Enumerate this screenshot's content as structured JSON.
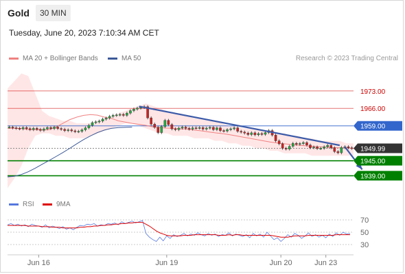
{
  "header": {
    "instrument": "Gold",
    "interval": "30 MIN",
    "datetime": "Tuesday, June 20, 2023 7:10:34 AM CET"
  },
  "legend": {
    "ma20": "MA 20 + Bollinger Bands",
    "ma50": "MA 50",
    "rsi": "RSI",
    "rsi_ma": "9MA",
    "credit": "Research © 2023 Trading Central"
  },
  "colors": {
    "resistance": "#d00000",
    "pivot": "#3366cc",
    "support": "#008000",
    "current": "#333333",
    "ma20": "#f08080",
    "ma50": "#3b5998",
    "rsi": "#5577dd",
    "rsi_ma": "#dd0000"
  },
  "chart_data": {
    "type": "line",
    "ylim": [
      1932,
      1982
    ],
    "xlim": [
      0,
      100
    ],
    "x_ticks": [
      {
        "pos": 9,
        "label": "Jun 16"
      },
      {
        "pos": 46,
        "label": "Jun 19"
      },
      {
        "pos": 79,
        "label": "Jun 20"
      },
      {
        "pos": 92,
        "label": "Jun 23"
      }
    ],
    "levels": [
      {
        "value": 1973.0,
        "label": "1973.00",
        "kind": "resistance"
      },
      {
        "value": 1966.0,
        "label": "1966.00",
        "kind": "resistance"
      },
      {
        "value": 1959.0,
        "label": "1959.00",
        "kind": "pivot"
      },
      {
        "value": 1949.99,
        "label": "1949.99",
        "kind": "current"
      },
      {
        "value": 1945.0,
        "label": "1945.00",
        "kind": "support"
      },
      {
        "value": 1939.0,
        "label": "1939.00",
        "kind": "support"
      }
    ],
    "price": [
      1958.5,
      1958.2,
      1958.0,
      1957.8,
      1958.3,
      1957.9,
      1957.5,
      1958.0,
      1957.6,
      1957.2,
      1957.8,
      1958.3,
      1957.9,
      1958.5,
      1957.9,
      1957.6,
      1957.1,
      1957.4,
      1957.0,
      1956.7,
      1956.8,
      1957.4,
      1958.2,
      1959.2,
      1960.3,
      1960.6,
      1960.9,
      1961.7,
      1962.1,
      1962.8,
      1963.2,
      1963.4,
      1963.6,
      1963.2,
      1964.1,
      1965.1,
      1965.7,
      1966.1,
      1966.4,
      1966.7,
      1962.2,
      1959.7,
      1958.4,
      1956.3,
      1958.7,
      1961.2,
      1959.5,
      1957.8,
      1957.5,
      1958.1,
      1958.5,
      1958.0,
      1957.7,
      1958.2,
      1958.1,
      1958.3,
      1957.7,
      1958.1,
      1958.4,
      1957.5,
      1958.2,
      1957.1,
      1956.9,
      1957.5,
      1957.8,
      1958.2,
      1956.8,
      1956.5,
      1956.1,
      1955.5,
      1956.2,
      1955.4,
      1955.9,
      1955.6,
      1956.3,
      1957.1,
      1955.3,
      1953.0,
      1951.8,
      1950.0,
      1949.7,
      1950.8,
      1952.0,
      1951.6,
      1951.9,
      1952.3,
      1951.3,
      1950.2,
      1950.5,
      1949.9,
      1950.0,
      1950.6,
      1951.2,
      1950.2,
      1948.7,
      1948.2,
      1950.3,
      1950.6,
      1950.2,
      1949.99
    ],
    "bollinger": {
      "upper": [
        1974,
        1977,
        1980,
        1979,
        1972,
        1965,
        1963,
        1962,
        1961,
        1961,
        1960,
        1960,
        1960,
        1961,
        1962,
        1963,
        1964,
        1965,
        1966,
        1967,
        1968,
        1967,
        1966,
        1965,
        1964,
        1964,
        1963,
        1962,
        1962,
        1961,
        1961,
        1960,
        1959,
        1959,
        1958,
        1958,
        1958,
        1957,
        1957,
        1956,
        1956,
        1955,
        1955,
        1954,
        1954,
        1953,
        1953,
        1953,
        1953,
        1952,
        1952
      ],
      "lower": [
        1934,
        1938,
        1943,
        1950,
        1955,
        1956,
        1956,
        1955,
        1955,
        1954,
        1954,
        1954,
        1955,
        1956,
        1957,
        1958,
        1959,
        1960,
        1960,
        1959,
        1958,
        1957,
        1956,
        1956,
        1955,
        1955,
        1955,
        1954,
        1954,
        1954,
        1953,
        1953,
        1952,
        1952,
        1951,
        1951,
        1950,
        1950,
        1949,
        1949,
        1948,
        1948,
        1948,
        1948,
        1947,
        1947,
        1947,
        1947,
        1947,
        1947,
        1947
      ]
    },
    "ma20": [
      1958,
      1958,
      1958,
      1957.5,
      1957.5,
      1957.3,
      1957.5,
      1958.5,
      1960,
      1961.5,
      1962.5,
      1963.2,
      1963.5,
      1963.3,
      1962.5,
      1962,
      1961,
      1960.5,
      1960,
      1959.6,
      1959.2,
      1958.6,
      1958.3,
      1958.1,
      1958,
      1957.8,
      1957.6,
      1957.3,
      1957,
      1956.6,
      1956.2,
      1955.9,
      1955.5,
      1955,
      1954.5,
      1954,
      1953.5,
      1953,
      1952.5,
      1952.1,
      1951.8,
      1951.5,
      1951.2,
      1951,
      1950.8,
      1950.6,
      1950.5,
      1950.3,
      1950.2,
      1950.1,
      1950
    ],
    "ma50": [
      1938.5,
      1938.8,
      1939.5,
      1940.6,
      1942,
      1943.6,
      1945.1,
      1946.7,
      1948.3,
      1950,
      1951.8,
      1953.5,
      1955,
      1956.3,
      1957.3,
      1958,
      1958.3,
      1958.4,
      1958.5
    ],
    "trendlines": [
      {
        "from": [
          38,
          1966.8
        ],
        "to": [
          96,
          1951.2
        ]
      },
      {
        "from": [
          97.5,
          1950.6
        ],
        "to": [
          102.5,
          1941.5
        ]
      }
    ],
    "rsi_levels": [
      70,
      50,
      30
    ],
    "rsi": [
      62,
      64,
      61,
      63,
      60,
      62,
      59,
      63,
      61,
      60,
      58,
      62,
      57,
      60,
      58,
      56,
      59,
      55,
      57,
      54,
      58,
      61,
      60,
      63,
      62,
      64,
      60,
      62,
      61,
      64,
      63,
      65,
      62,
      67,
      64,
      66,
      68,
      65,
      67,
      69,
      48,
      42,
      38,
      35,
      42,
      36,
      44,
      40,
      46,
      43,
      45,
      48,
      44,
      47,
      45,
      49,
      46,
      44,
      48,
      45,
      47,
      43,
      46,
      45,
      49,
      44,
      47,
      45,
      43,
      46,
      41,
      48,
      44,
      47,
      42,
      50,
      44,
      38,
      41,
      35,
      40,
      46,
      42,
      48,
      45,
      40,
      44,
      49,
      43,
      46,
      42,
      45,
      41,
      47,
      43,
      49,
      45,
      50,
      47,
      48
    ],
    "rsi_ma": [
      61,
      61,
      61,
      61,
      61,
      61,
      60,
      60,
      60,
      60,
      59,
      59,
      59,
      58,
      58,
      58,
      57,
      57,
      57,
      57,
      57,
      58,
      58,
      59,
      59,
      60,
      60,
      61,
      61,
      62,
      62,
      63,
      63,
      64,
      64,
      65,
      65,
      66,
      66,
      66,
      63,
      60,
      56,
      52,
      49,
      47,
      45,
      44,
      44,
      44,
      44,
      45,
      45,
      45,
      46,
      46,
      46,
      46,
      46,
      46,
      46,
      45,
      45,
      45,
      46,
      45,
      46,
      46,
      45,
      45,
      45,
      45,
      45,
      45,
      45,
      45,
      45,
      44,
      43,
      42,
      42,
      42,
      43,
      44,
      44,
      44,
      44,
      45,
      45,
      45,
      45,
      45,
      45,
      45,
      45,
      46,
      46,
      46,
      46,
      46
    ]
  }
}
